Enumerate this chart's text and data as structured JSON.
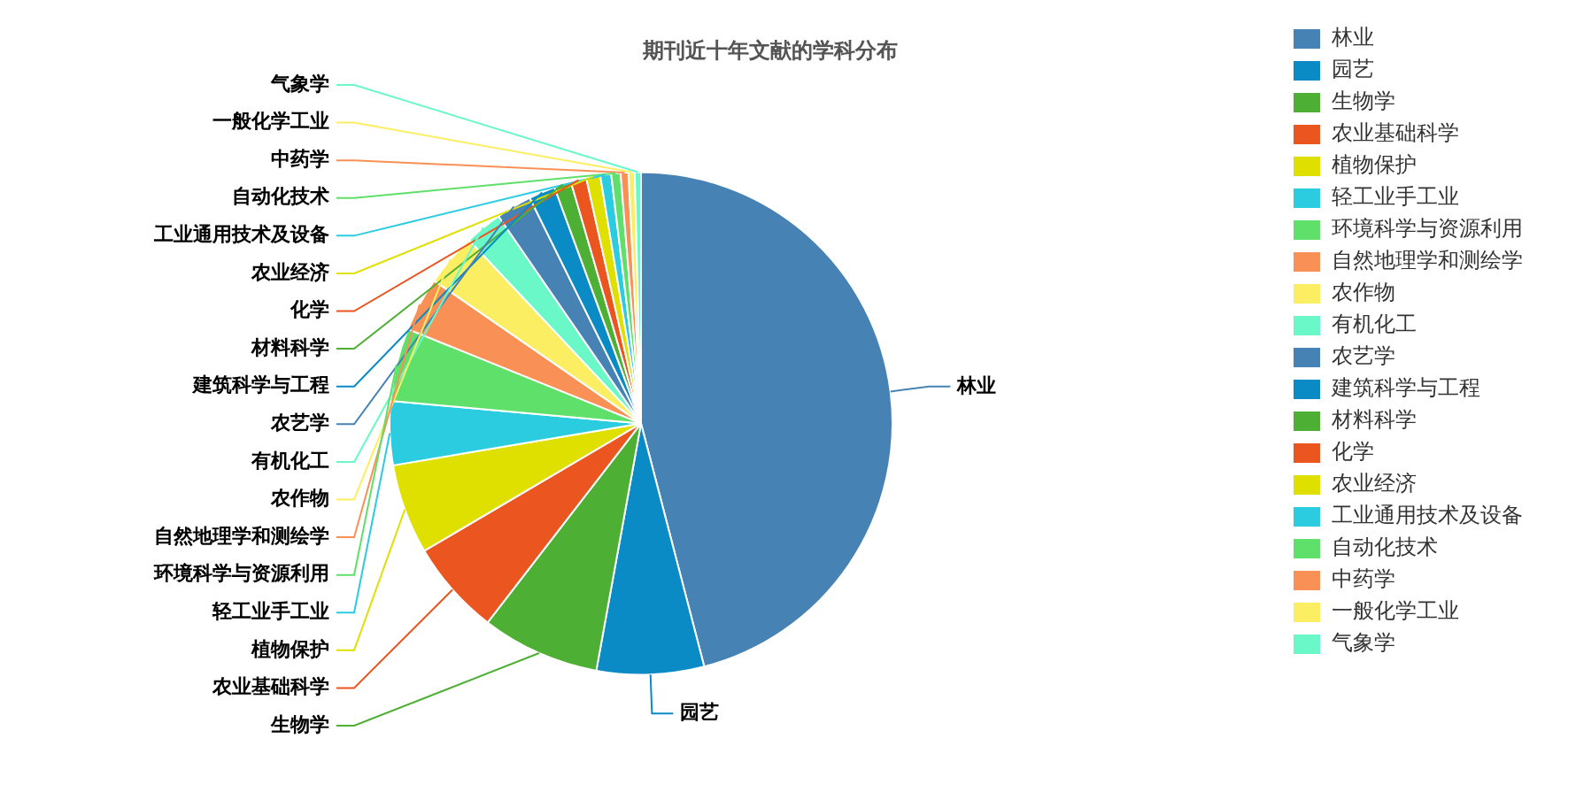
{
  "chart_data": {
    "type": "pie",
    "title": "期刊近十年文献的学科分布",
    "categories": [
      "林业",
      "园艺",
      "生物学",
      "农业基础科学",
      "植物保护",
      "轻工业手工业",
      "环境科学与资源利用",
      "自然地理学和测绘学",
      "农作物",
      "有机化工",
      "农艺学",
      "建筑科学与工程",
      "材料科学",
      "化学",
      "农业经济",
      "工业通用技术及设备",
      "自动化技术",
      "中药学",
      "一般化学工业",
      "气象学"
    ],
    "values": [
      46.0,
      6.9,
      7.6,
      6.1,
      5.8,
      4.1,
      4.7,
      3.5,
      3.4,
      2.4,
      2.3,
      1.7,
      1.1,
      1.0,
      0.9,
      0.7,
      0.6,
      0.5,
      0.4,
      0.4
    ],
    "colors": [
      "#4682b4",
      "#0a8bc6",
      "#4daf34",
      "#ea5520",
      "#dfdf00",
      "#2bcbe0",
      "#5fe06a",
      "#f99056",
      "#fcee62",
      "#6af8c8",
      "#4682b4",
      "#0a8bc6",
      "#4daf34",
      "#ea5520",
      "#dfdf00",
      "#2bcbe0",
      "#5fe06a",
      "#f99056",
      "#fcee62",
      "#6af8c8"
    ],
    "legend": "top right"
  }
}
